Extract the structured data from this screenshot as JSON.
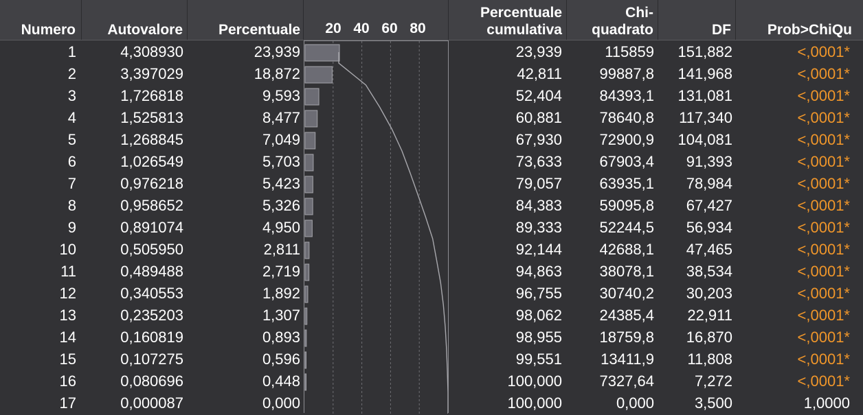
{
  "headers": {
    "numero": "Numero",
    "autovalore": "Autovalore",
    "percentuale": "Percentuale",
    "perc_cum_1": "Percentuale",
    "perc_cum_2": "cumulativa",
    "chi_1": "Chi-",
    "chi_2": "quadrato",
    "df": "DF",
    "prob": "Prob>ChiQu",
    "ticks": [
      "20",
      "40",
      "60",
      "80"
    ]
  },
  "colors": {
    "significant": "#f0962a",
    "bar_fill": "#6c6c74",
    "bar_stroke": "#a5a5ab",
    "curve": "#a8a8ad"
  },
  "rows": [
    {
      "n": "1",
      "eig": "4,308930",
      "pct": "23,939",
      "cum": "23,939",
      "chi": "115859",
      "df": "151,882",
      "prob": "<,0001*",
      "sig": true
    },
    {
      "n": "2",
      "eig": "3,397029",
      "pct": "18,872",
      "cum": "42,811",
      "chi": "99887,8",
      "df": "141,968",
      "prob": "<,0001*",
      "sig": true
    },
    {
      "n": "3",
      "eig": "1,726818",
      "pct": "9,593",
      "cum": "52,404",
      "chi": "84393,1",
      "df": "131,081",
      "prob": "<,0001*",
      "sig": true
    },
    {
      "n": "4",
      "eig": "1,525813",
      "pct": "8,477",
      "cum": "60,881",
      "chi": "78640,8",
      "df": "117,340",
      "prob": "<,0001*",
      "sig": true
    },
    {
      "n": "5",
      "eig": "1,268845",
      "pct": "7,049",
      "cum": "67,930",
      "chi": "72900,9",
      "df": "104,081",
      "prob": "<,0001*",
      "sig": true
    },
    {
      "n": "6",
      "eig": "1,026549",
      "pct": "5,703",
      "cum": "73,633",
      "chi": "67903,4",
      "df": "91,393",
      "prob": "<,0001*",
      "sig": true
    },
    {
      "n": "7",
      "eig": "0,976218",
      "pct": "5,423",
      "cum": "79,057",
      "chi": "63935,1",
      "df": "78,984",
      "prob": "<,0001*",
      "sig": true
    },
    {
      "n": "8",
      "eig": "0,958652",
      "pct": "5,326",
      "cum": "84,383",
      "chi": "59095,8",
      "df": "67,427",
      "prob": "<,0001*",
      "sig": true
    },
    {
      "n": "9",
      "eig": "0,891074",
      "pct": "4,950",
      "cum": "89,333",
      "chi": "52244,5",
      "df": "56,934",
      "prob": "<,0001*",
      "sig": true
    },
    {
      "n": "10",
      "eig": "0,505950",
      "pct": "2,811",
      "cum": "92,144",
      "chi": "42688,1",
      "df": "47,465",
      "prob": "<,0001*",
      "sig": true
    },
    {
      "n": "11",
      "eig": "0,489488",
      "pct": "2,719",
      "cum": "94,863",
      "chi": "38078,1",
      "df": "38,534",
      "prob": "<,0001*",
      "sig": true
    },
    {
      "n": "12",
      "eig": "0,340553",
      "pct": "1,892",
      "cum": "96,755",
      "chi": "30740,2",
      "df": "30,203",
      "prob": "<,0001*",
      "sig": true
    },
    {
      "n": "13",
      "eig": "0,235203",
      "pct": "1,307",
      "cum": "98,062",
      "chi": "24385,4",
      "df": "22,911",
      "prob": "<,0001*",
      "sig": true
    },
    {
      "n": "14",
      "eig": "0,160819",
      "pct": "0,893",
      "cum": "98,955",
      "chi": "18759,8",
      "df": "16,870",
      "prob": "<,0001*",
      "sig": true
    },
    {
      "n": "15",
      "eig": "0,107275",
      "pct": "0,596",
      "cum": "99,551",
      "chi": "13411,9",
      "df": "11,808",
      "prob": "<,0001*",
      "sig": true
    },
    {
      "n": "16",
      "eig": "0,080696",
      "pct": "0,448",
      "cum": "100,000",
      "chi": "7327,64",
      "df": "7,272",
      "prob": "<,0001*",
      "sig": true
    },
    {
      "n": "17",
      "eig": "0,000087",
      "pct": "0,000",
      "cum": "100,000",
      "chi": "0,000",
      "df": "3,500",
      "prob": "1,0000",
      "sig": false
    }
  ],
  "chart_data": {
    "type": "bar",
    "categories": [
      "1",
      "2",
      "3",
      "4",
      "5",
      "6",
      "7",
      "8",
      "9",
      "10",
      "11",
      "12",
      "13",
      "14",
      "15",
      "16",
      "17"
    ],
    "series": [
      {
        "values": [
          23.939,
          18.872,
          9.593,
          8.477,
          7.049,
          5.703,
          5.423,
          5.326,
          4.95,
          2.811,
          2.719,
          1.892,
          1.307,
          0.893,
          0.596,
          0.448,
          0.0
        ]
      },
      {
        "values": [
          23.939,
          42.811,
          52.404,
          60.881,
          67.93,
          73.633,
          79.057,
          84.383,
          89.333,
          92.144,
          94.863,
          96.755,
          98.062,
          98.955,
          99.551,
          100.0,
          100.0
        ]
      }
    ],
    "xlim": [
      0,
      100
    ],
    "xticks": [
      20,
      40,
      60,
      80
    ],
    "grid": true
  }
}
